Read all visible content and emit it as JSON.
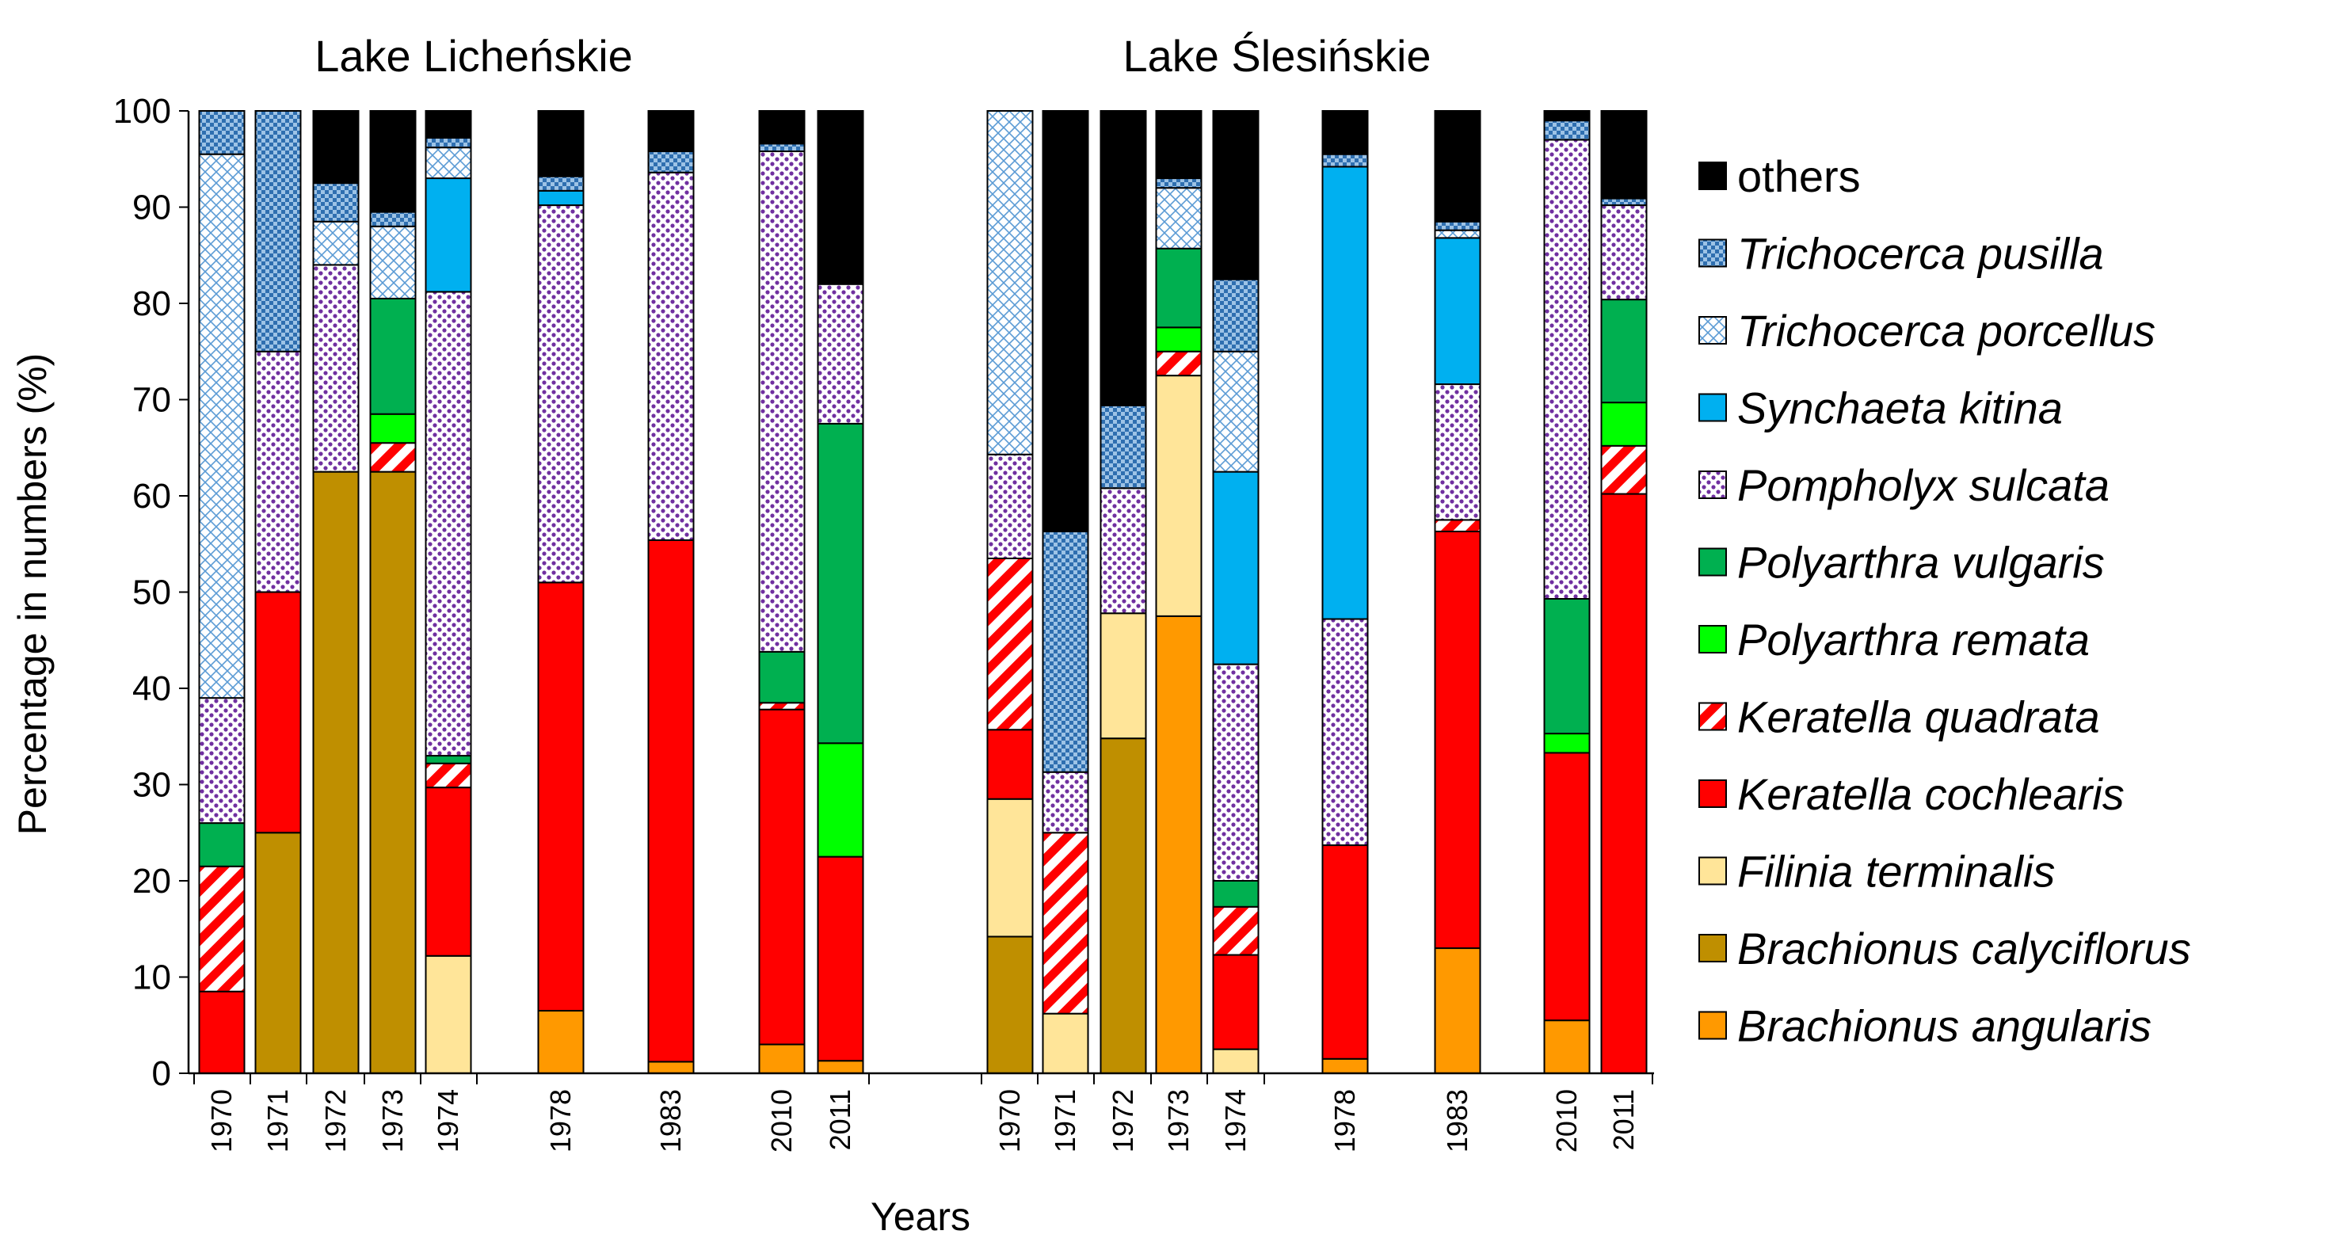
{
  "chart_data": {
    "type": "bar",
    "stacked": true,
    "ylabel": "Percentage in numbers (%)",
    "xlabel": "Years",
    "ylim": [
      0,
      100
    ],
    "yticks": [
      0,
      10,
      20,
      30,
      40,
      50,
      60,
      70,
      80,
      90,
      100
    ],
    "species": [
      {
        "name": "Brachionus angularis",
        "color": "#ff9900",
        "pattern": "solid",
        "italic": true
      },
      {
        "name": "Brachionus calyciflorus",
        "color": "#bf8f00",
        "pattern": "solid",
        "italic": true
      },
      {
        "name": "Filinia terminalis",
        "color": "#ffe599",
        "pattern": "solid",
        "italic": true
      },
      {
        "name": "Keratella cochlearis",
        "color": "#ff0000",
        "pattern": "solid",
        "italic": true
      },
      {
        "name": "Keratella quadrata",
        "color": "#ff0000",
        "pattern": "hatch",
        "italic": true
      },
      {
        "name": "Polyarthra remata",
        "color": "#00ff00",
        "pattern": "solid",
        "italic": true
      },
      {
        "name": "Polyarthra vulgaris",
        "color": "#00b050",
        "pattern": "solid",
        "italic": true
      },
      {
        "name": "Pompholyx sulcata",
        "color": "#7030a0",
        "pattern": "dots",
        "italic": true
      },
      {
        "name": "Synchaeta kitina",
        "color": "#00b0f0",
        "pattern": "solid",
        "italic": true
      },
      {
        "name": "Trichocerca porcellus",
        "color": "#5b9bd5",
        "pattern": "lattice",
        "italic": true
      },
      {
        "name": "Trichocerca pusilla",
        "color": "#4a86c8",
        "pattern": "check",
        "italic": true
      },
      {
        "name": "others",
        "color": "#000000",
        "pattern": "solid",
        "italic": false
      }
    ],
    "panels": [
      {
        "title": "Lake Licheńskie",
        "bars": [
          {
            "year": "1970",
            "values": [
              0,
              0,
              0,
              8.5,
              13,
              0,
              4.5,
              13,
              0,
              56.5,
              4.5,
              0
            ]
          },
          {
            "year": "1971",
            "values": [
              0,
              25,
              0,
              25,
              0,
              0,
              0,
              25,
              0,
              0,
              25,
              0
            ]
          },
          {
            "year": "1972",
            "values": [
              0,
              62.5,
              0,
              0,
              0,
              0,
              0,
              21.5,
              0,
              4.5,
              4,
              7.5
            ]
          },
          {
            "year": "1973",
            "values": [
              0,
              62.5,
              0,
              0,
              3,
              3,
              12,
              0,
              0,
              7.5,
              1.5,
              10.5
            ]
          },
          {
            "year": "1974",
            "values": [
              0,
              0,
              12.2,
              17.5,
              2.5,
              0,
              0.8,
              48.2,
              11.8,
              3.2,
              1,
              2.8
            ]
          },
          {
            "year": "1978",
            "values": [
              6.5,
              0,
              0,
              44.5,
              0,
              0,
              0,
              39.2,
              1.5,
              0,
              1.5,
              6.8
            ]
          },
          {
            "year": "1983",
            "values": [
              1.2,
              0,
              0,
              54.2,
              0,
              0,
              0,
              38.2,
              0,
              0,
              2.2,
              4.2
            ]
          },
          {
            "year": "2010",
            "values": [
              3,
              0,
              0,
              34.8,
              0.7,
              0,
              5.3,
              52,
              0,
              0,
              0.8,
              3.4
            ]
          },
          {
            "year": "2011",
            "values": [
              1.3,
              0,
              0,
              21.2,
              0,
              11.8,
              33.2,
              14.5,
              0,
              0,
              0,
              18
            ]
          }
        ]
      },
      {
        "title": "Lake Ślesińskie",
        "bars": [
          {
            "year": "1970",
            "values": [
              0,
              14.2,
              14.3,
              7.2,
              17.8,
              0,
              0,
              10.8,
              0,
              35.7,
              0,
              0
            ]
          },
          {
            "year": "1971",
            "values": [
              0,
              0,
              6.2,
              0,
              18.8,
              0,
              0,
              6.3,
              0,
              0,
              25,
              43.7
            ]
          },
          {
            "year": "1972",
            "values": [
              0,
              34.8,
              13,
              0,
              0,
              0,
              0,
              13,
              0,
              0,
              8.6,
              30.6
            ]
          },
          {
            "year": "1973",
            "values": [
              47.5,
              0,
              25,
              0,
              2.5,
              2.5,
              8.2,
              0,
              0,
              6.3,
              1,
              7
            ]
          },
          {
            "year": "1974",
            "values": [
              0,
              0,
              2.5,
              9.8,
              5,
              0,
              2.7,
              22.5,
              20,
              12.5,
              7.5,
              17.5
            ]
          },
          {
            "year": "1978",
            "values": [
              1.5,
              0,
              0,
              22.2,
              0,
              0,
              0,
              23.5,
              47,
              0,
              1.3,
              4.5
            ]
          },
          {
            "year": "1983",
            "values": [
              13,
              0,
              0,
              43.3,
              1.2,
              0,
              0,
              14.1,
              15.2,
              0.8,
              0.9,
              11.5
            ]
          },
          {
            "year": "2010",
            "values": [
              5.5,
              0,
              0,
              27.8,
              0,
              2,
              14,
              47.7,
              0,
              0,
              2,
              1
            ]
          },
          {
            "year": "2011",
            "values": [
              0,
              0,
              0,
              60.2,
              5,
              4.5,
              10.7,
              9.8,
              0,
              0,
              0.7,
              9.1
            ]
          }
        ]
      }
    ]
  }
}
